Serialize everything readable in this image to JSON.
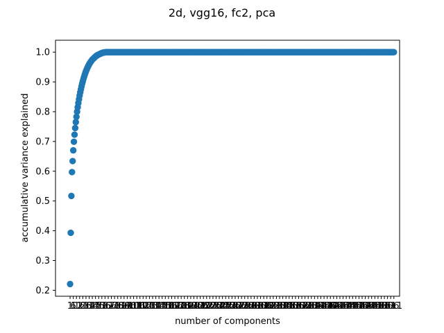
{
  "chart_data": {
    "type": "scatter",
    "title": "2d, vgg16, fc2, pca",
    "xlabel": "number of components",
    "ylabel": "accumulative variance explained",
    "xlim": [
      -22,
      520
    ],
    "ylim": [
      0.18,
      1.04
    ],
    "yticks": [
      "0.2",
      "0.3",
      "0.4",
      "0.5",
      "0.6",
      "0.7",
      "0.8",
      "0.9",
      "1.0"
    ],
    "xtick_step": 5,
    "n_points": 511,
    "grid": false,
    "legend": "none",
    "color": "#1f77b4",
    "series": [
      {
        "values": [
          0.221,
          0.393,
          0.517,
          0.597,
          0.634,
          0.67,
          0.699,
          0.723,
          0.745,
          0.765,
          0.783,
          0.8,
          0.815,
          0.829,
          0.842,
          0.854,
          0.865,
          0.875,
          0.885,
          0.894,
          0.902,
          0.91,
          0.917,
          0.924,
          0.93,
          0.936,
          0.941,
          0.946,
          0.951,
          0.955,
          0.959,
          0.963,
          0.966,
          0.969,
          0.972,
          0.975,
          0.977,
          0.979,
          0.981,
          0.983,
          0.985,
          0.987,
          0.988,
          0.99,
          0.991,
          0.992,
          0.993,
          0.994,
          0.995,
          0.996,
          0.997,
          0.998,
          0.998,
          0.999,
          0.999,
          0.999,
          1.0
        ],
        "tail_value": 1.0
      }
    ]
  }
}
